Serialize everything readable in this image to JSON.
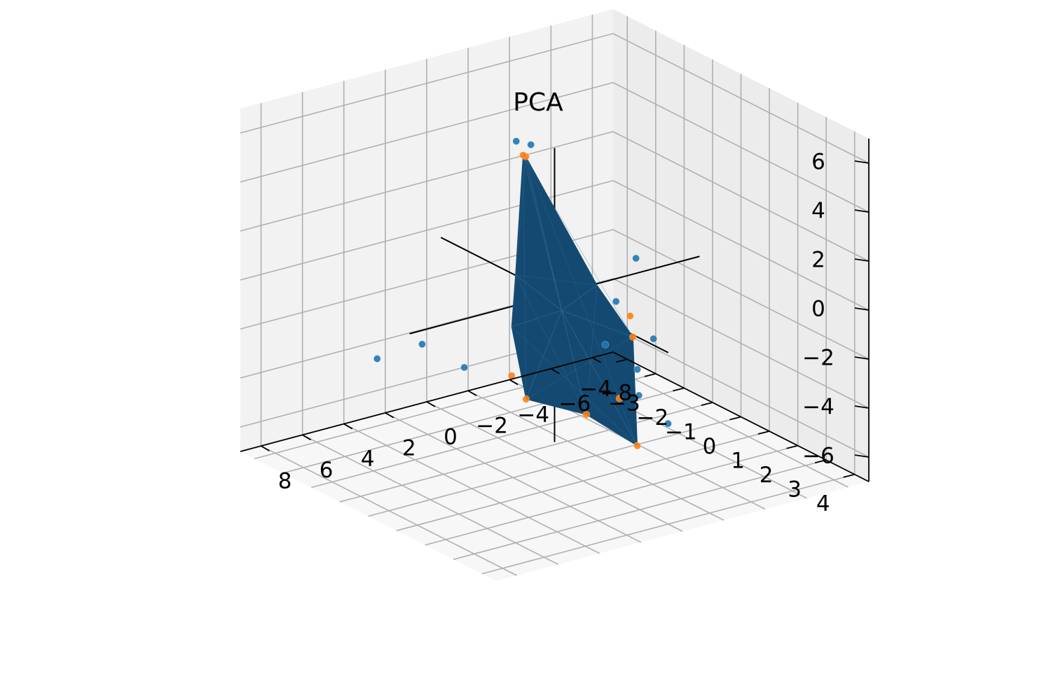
{
  "chart_data": {
    "type": "scatter",
    "subtype": "3d-scatter-with-surface",
    "title": "PCA",
    "xlabel": "",
    "ylabel": "",
    "zlabel": "",
    "xlim": [
      -9,
      9
    ],
    "ylim": [
      -4.5,
      4.5
    ],
    "zlim": [
      -7,
      7
    ],
    "x_ticks": [
      -8,
      -6,
      -4,
      -2,
      0,
      2,
      4,
      6,
      8
    ],
    "y_ticks": [
      -4,
      -3,
      -2,
      -1,
      0,
      1,
      2,
      3,
      4
    ],
    "z_ticks": [
      -6,
      -4,
      -2,
      0,
      2,
      4,
      6
    ],
    "grid": true,
    "legend": "none",
    "colors": {
      "series_blue": "#1f77b4",
      "series_orange": "#ff7f0e",
      "surface": "#144a72",
      "pane_left": "#ececec",
      "pane_right": "#f2f2f2",
      "pane_floor": "#f7f7f7",
      "grid": "#b0b0b0",
      "axis_lines": "#000000"
    },
    "series": [
      {
        "marker": "dot",
        "color": "#1f77b4",
        "points": [
          {
            "x": -3.5,
            "y": -3.9,
            "z": 3.2
          },
          {
            "x": -1.6,
            "y": -2.0,
            "z": 4.6
          },
          {
            "x": 4.2,
            "y": -1.6,
            "z": -2.0
          },
          {
            "x": 5.0,
            "y": -2.6,
            "z": -3.0
          },
          {
            "x": 0.6,
            "y": 2.6,
            "z": 1.4
          },
          {
            "x": -6.4,
            "y": -1.8,
            "z": -1.0
          },
          {
            "x": -5.6,
            "y": -0.6,
            "z": -3.4
          },
          {
            "x": -1.8,
            "y": 1.6,
            "z": -2.5
          },
          {
            "x": 3.4,
            "y": -0.7,
            "z": -2.6
          },
          {
            "x": -1.6,
            "y": 1.8,
            "z": -3.4
          },
          {
            "x": -2.6,
            "y": 2.1,
            "z": -4.6
          },
          {
            "x": -0.8,
            "y": 1.2,
            "z": -1.5
          }
        ]
      },
      {
        "marker": "dot",
        "color": "#ff7f0e",
        "points": [
          {
            "x": -3.0,
            "y": -3.2,
            "z": 3.1
          },
          {
            "x": -0.4,
            "y": -1.4,
            "z": 4.8
          },
          {
            "x": 1.8,
            "y": -0.2,
            "z": -3.0
          },
          {
            "x": 2.2,
            "y": 0.6,
            "z": -3.4
          },
          {
            "x": 0.8,
            "y": 1.7,
            "z": -3.7
          },
          {
            "x": -2.0,
            "y": 1.2,
            "z": -0.6
          },
          {
            "x": -2.0,
            "y": 1.3,
            "z": -1.4
          },
          {
            "x": -0.7,
            "y": 2.4,
            "z": -4.9
          },
          {
            "x": -0.8,
            "y": 1.7,
            "z": -3.4
          }
        ]
      }
    ]
  }
}
